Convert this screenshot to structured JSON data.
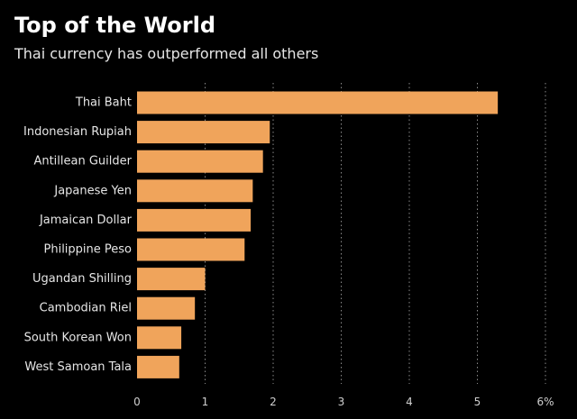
{
  "title": "Top of the World",
  "subtitle": "Thai currency has outperformed all others",
  "colors": {
    "background": "#000000",
    "bar": "#f0a45b",
    "grid": "#8a8a8a",
    "text": "#e6e6e6"
  },
  "chart_data": {
    "type": "bar",
    "orientation": "horizontal",
    "categories": [
      "Thai Baht",
      "Indonesian Rupiah",
      "Antillean Guilder",
      "Japanese Yen",
      "Jamaican Dollar",
      "Philippine Peso",
      "Ugandan Shilling",
      "Cambodian Riel",
      "South Korean Won",
      "West Samoan Tala"
    ],
    "values": [
      5.3,
      1.95,
      1.85,
      1.7,
      1.67,
      1.58,
      1.0,
      0.85,
      0.65,
      0.62
    ],
    "xlim": [
      0,
      6
    ],
    "xticks": [
      0,
      1,
      2,
      3,
      4,
      5,
      6
    ],
    "xtick_labels": [
      "0",
      "1",
      "2",
      "3",
      "4",
      "5",
      "6%"
    ],
    "grid": "vertical dotted",
    "legend": "none"
  }
}
